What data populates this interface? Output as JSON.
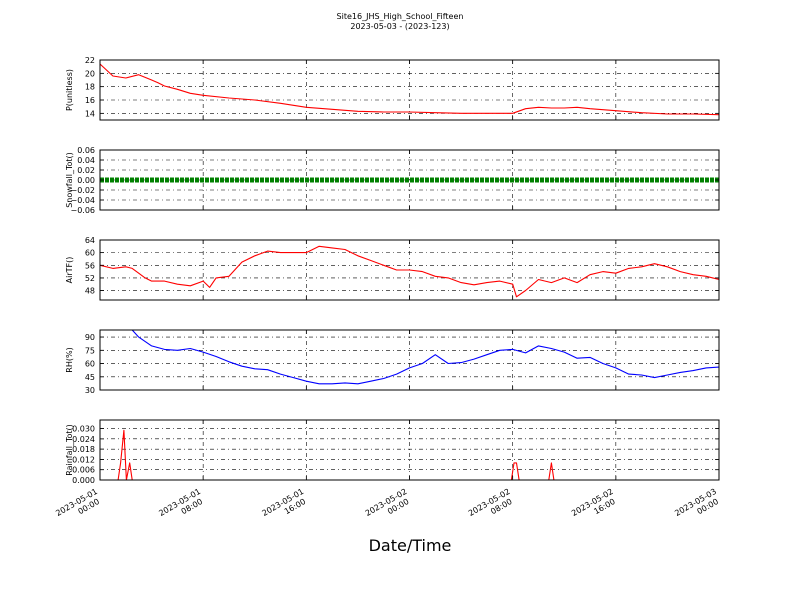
{
  "figure": {
    "title_line1": "Site16_JHS_High_School_Fifteen",
    "title_line2": "2023-05-03 - (2023-123)",
    "xlabel": "Date/Time"
  },
  "chart_data": [
    {
      "type": "line",
      "ylabel": "P(unitless)",
      "color": "#ff0000",
      "ylim": [
        13,
        22
      ],
      "yticks": [
        14,
        16,
        18,
        20,
        22
      ],
      "ytick_labels": [
        "14",
        "16",
        "18",
        "20",
        "22"
      ],
      "grid": true,
      "x": [
        0,
        1,
        2,
        3,
        4,
        4.5,
        5,
        6,
        7,
        8,
        10,
        12,
        14,
        16,
        18,
        20,
        22,
        24,
        26,
        28,
        30,
        32,
        33,
        34,
        35,
        36,
        37,
        38,
        40,
        42,
        44,
        46,
        48
      ],
      "values": [
        21.4,
        19.6,
        19.3,
        19.8,
        19.0,
        18.6,
        18.1,
        17.6,
        17.0,
        16.7,
        16.3,
        16.0,
        15.5,
        14.9,
        14.6,
        14.3,
        14.2,
        14.2,
        14.1,
        14.0,
        14.0,
        14.0,
        14.7,
        14.9,
        14.8,
        14.8,
        14.9,
        14.7,
        14.4,
        14.1,
        13.9,
        13.9,
        13.8
      ]
    },
    {
      "type": "scatter",
      "ylabel": "Snowfall_Tot()",
      "color": "#008000",
      "ylim": [
        -0.06,
        0.06
      ],
      "yticks": [
        -0.06,
        -0.04,
        -0.02,
        0.0,
        0.02,
        0.04,
        0.06
      ],
      "ytick_labels": [
        "−0.06",
        "−0.04",
        "−0.02",
        "0.00",
        "0.02",
        "0.04",
        "0.06"
      ],
      "grid": true,
      "x": [
        0,
        48
      ],
      "values": [
        0,
        0
      ]
    },
    {
      "type": "line",
      "ylabel": "AirTF()",
      "color": "#ff0000",
      "ylim": [
        45,
        64
      ],
      "yticks": [
        48,
        52,
        56,
        60,
        64
      ],
      "ytick_labels": [
        "48",
        "52",
        "56",
        "60",
        "64"
      ],
      "grid": true,
      "x": [
        0,
        1,
        2,
        2.5,
        3,
        3.5,
        4,
        5,
        6,
        7,
        8,
        8.5,
        9,
        10,
        11,
        12,
        13,
        14,
        15,
        16,
        17,
        18,
        19,
        20,
        21,
        22,
        23,
        24,
        25,
        26,
        27,
        28,
        29,
        30,
        31,
        32,
        32.3,
        33,
        34,
        35,
        36,
        37,
        38,
        39,
        40,
        41,
        42,
        43,
        44,
        45,
        46,
        47,
        48
      ],
      "values": [
        56,
        55,
        55.5,
        55,
        53.5,
        52,
        51,
        51,
        50,
        49.5,
        51,
        49,
        52,
        52.5,
        57,
        59,
        60.5,
        60,
        60,
        60,
        62,
        61.5,
        61,
        59,
        57.5,
        56,
        54.5,
        54.5,
        54,
        52.5,
        52,
        50.5,
        49.8,
        50.5,
        51,
        50,
        46,
        48,
        51.5,
        50.5,
        52,
        50.5,
        53,
        54,
        53.5,
        55,
        55.5,
        56.5,
        55.5,
        54,
        53,
        52.5,
        51.5
      ]
    },
    {
      "type": "line",
      "ylabel": "RH(%)",
      "color": "#0000ff",
      "ylim": [
        30,
        98
      ],
      "yticks": [
        30,
        45,
        60,
        75,
        90
      ],
      "ytick_labels": [
        "30",
        "45",
        "60",
        "75",
        "90"
      ],
      "grid": true,
      "x": [
        2.5,
        3,
        4,
        5,
        6,
        7,
        8,
        9,
        10,
        11,
        12,
        13,
        14,
        15,
        16,
        17,
        18,
        19,
        20,
        21,
        22,
        23,
        24,
        25,
        26,
        27,
        28,
        29,
        30,
        31,
        32,
        33,
        34,
        35,
        36,
        37,
        38,
        39,
        40,
        41,
        42,
        43,
        44,
        45,
        46,
        47,
        48
      ],
      "values": [
        98,
        90,
        80,
        76,
        75,
        77,
        73,
        68,
        62,
        57,
        54,
        53,
        48,
        44,
        40,
        37,
        37,
        38,
        37,
        40,
        43,
        48,
        55,
        60,
        70,
        60,
        61,
        65,
        70,
        75,
        76,
        72,
        80,
        77,
        73,
        66,
        67,
        60,
        55,
        48,
        47,
        44,
        47,
        50,
        52,
        55,
        56
      ]
    },
    {
      "type": "line",
      "ylabel": "Rainfall_Tot()",
      "color": "#ff0000",
      "ylim": [
        0,
        0.035
      ],
      "yticks": [
        0.0,
        0.006,
        0.012,
        0.018,
        0.024,
        0.03
      ],
      "ytick_labels": [
        "0.000",
        "0.006",
        "0.012",
        "0.018",
        "0.024",
        "0.030"
      ],
      "grid": true,
      "x": [
        0,
        1.4,
        1.6,
        1.85,
        2.05,
        2.3,
        2.5,
        2.7,
        31.9,
        32.1,
        32.3,
        32.5,
        34.8,
        35,
        35.2,
        48
      ],
      "values": [
        0,
        0,
        0.01,
        0.029,
        0.0,
        0.01,
        0.0,
        0,
        0,
        0.01,
        0.01,
        0,
        0,
        0.01,
        0,
        0
      ]
    }
  ],
  "x_axis": {
    "range_hours": [
      0,
      48
    ],
    "tick_hours": [
      0,
      8,
      16,
      24,
      32,
      40,
      48
    ],
    "tick_labels": [
      {
        "line1": "2023-05-01",
        "line2": "00:00"
      },
      {
        "line1": "2023-05-01",
        "line2": "08:00"
      },
      {
        "line1": "2023-05-01",
        "line2": "16:00"
      },
      {
        "line1": "2023-05-02",
        "line2": "00:00"
      },
      {
        "line1": "2023-05-02",
        "line2": "08:00"
      },
      {
        "line1": "2023-05-02",
        "line2": "16:00"
      },
      {
        "line1": "2023-05-03",
        "line2": "00:00"
      }
    ]
  }
}
